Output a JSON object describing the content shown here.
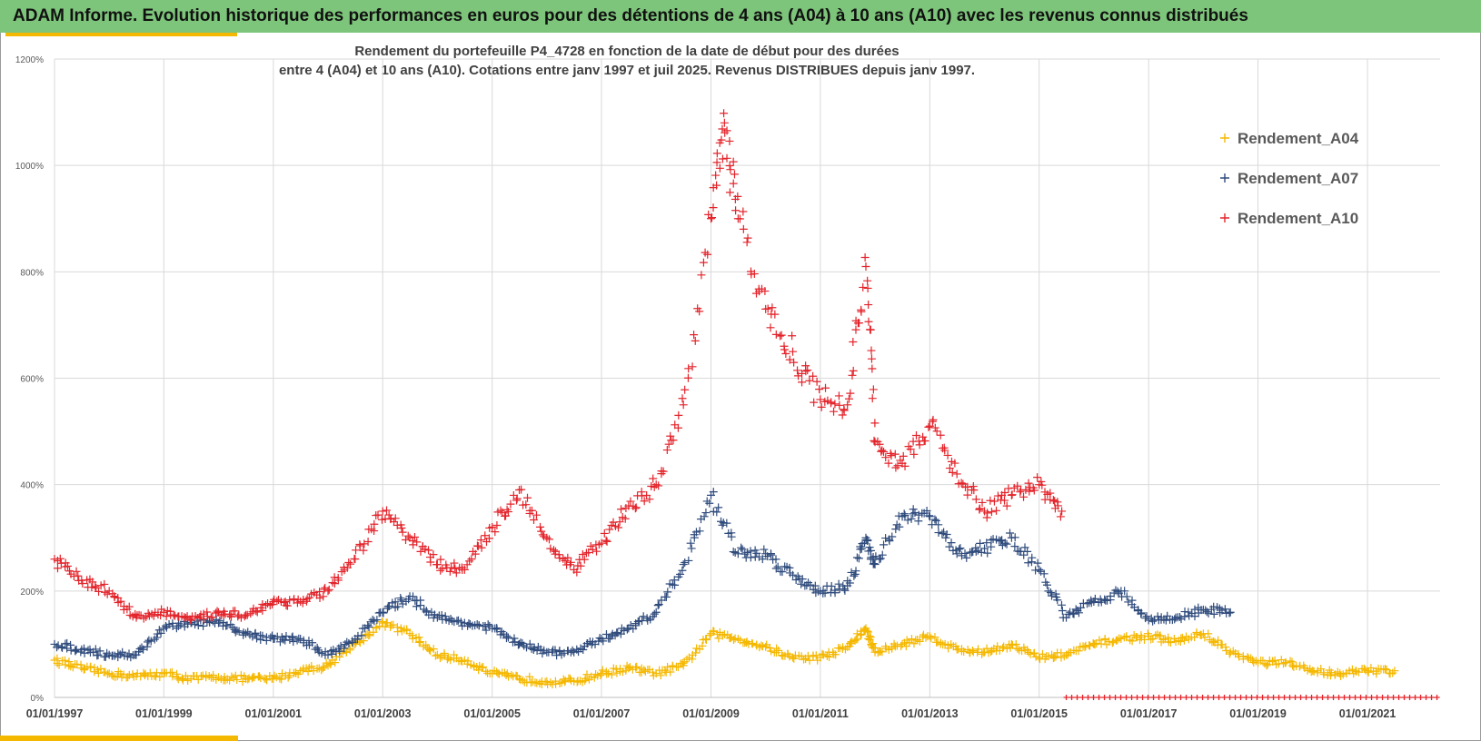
{
  "banner": {
    "title": "ADAM Informe. Evolution historique des performances en euros pour des détentions de 4 ans (A04) à 10 ans (A10) avec les revenus connus distribués",
    "background": "#7dc57a",
    "accent": "#f5b800"
  },
  "chart_data": {
    "type": "scatter",
    "title_line1": "Rendement du portefeuille P4_4728 en fonction de la date de début pour des durées",
    "title_line2": "entre 4 (A04) et 10 ans (A10). Cotations  entre janv 1997 et juil 2025. Revenus DISTRIBUES depuis janv 1997.",
    "xlabel": "",
    "ylabel": "",
    "xlim": [
      "1997-01-01",
      "2022-05-01"
    ],
    "ylim": [
      0,
      1200
    ],
    "y_ticks": [
      0,
      200,
      400,
      600,
      800,
      1000,
      1200
    ],
    "y_tick_labels": [
      "0%",
      "200%",
      "400%",
      "600%",
      "800%",
      "1000%",
      "1200%"
    ],
    "x_ticks": [
      "1997-01-01",
      "1999-01-01",
      "2001-01-01",
      "2003-01-01",
      "2005-01-01",
      "2007-01-01",
      "2009-01-01",
      "2011-01-01",
      "2013-01-01",
      "2015-01-01",
      "2017-01-01",
      "2019-01-01",
      "2021-01-01"
    ],
    "x_tick_labels": [
      "01/01/1997",
      "01/01/1999",
      "01/01/2001",
      "01/01/2003",
      "01/01/2005",
      "01/01/2007",
      "01/01/2009",
      "01/01/2011",
      "01/01/2013",
      "01/01/2015",
      "01/01/2017",
      "01/01/2019",
      "01/01/2021"
    ],
    "grid": true,
    "legend_position": "top-right",
    "marker": "+",
    "series": [
      {
        "name": "Rendement_A04",
        "color": "#f5b800",
        "x": [
          "1997-01-01",
          "1997-07-01",
          "1998-01-01",
          "1998-07-01",
          "1999-01-01",
          "1999-07-01",
          "2000-01-01",
          "2000-07-01",
          "2001-01-01",
          "2001-07-01",
          "2002-01-01",
          "2002-07-01",
          "2003-01-01",
          "2003-07-01",
          "2004-01-01",
          "2004-07-01",
          "2005-01-01",
          "2005-07-01",
          "2006-01-01",
          "2006-07-01",
          "2007-01-01",
          "2007-07-01",
          "2008-01-01",
          "2008-07-01",
          "2009-01-01",
          "2009-07-01",
          "2010-01-01",
          "2010-07-01",
          "2011-01-01",
          "2011-07-01",
          "2011-11-01",
          "2012-01-01",
          "2012-07-01",
          "2013-01-01",
          "2013-07-01",
          "2014-01-01",
          "2014-07-01",
          "2015-01-01",
          "2015-07-01",
          "2016-01-01",
          "2016-07-01",
          "2017-01-01",
          "2017-07-01",
          "2018-01-01",
          "2018-07-01",
          "2019-01-01",
          "2019-07-01",
          "2020-01-01",
          "2020-07-01",
          "2021-01-01",
          "2021-07-01"
        ],
        "y": [
          70,
          55,
          45,
          40,
          45,
          35,
          38,
          35,
          35,
          50,
          60,
          100,
          140,
          120,
          80,
          70,
          45,
          35,
          30,
          30,
          45,
          55,
          45,
          60,
          120,
          110,
          95,
          75,
          75,
          95,
          130,
          85,
          100,
          115,
          90,
          85,
          100,
          75,
          80,
          100,
          110,
          115,
          105,
          120,
          85,
          65,
          65,
          50,
          45,
          50,
          50
        ]
      },
      {
        "name": "Rendement_A07",
        "color": "#2f4b7c",
        "x": [
          "1997-01-01",
          "1997-07-01",
          "1998-01-01",
          "1998-07-01",
          "1999-01-01",
          "1999-07-01",
          "2000-01-01",
          "2000-07-01",
          "2001-01-01",
          "2001-07-01",
          "2002-01-01",
          "2002-07-01",
          "2003-01-01",
          "2003-07-01",
          "2004-01-01",
          "2004-07-01",
          "2005-01-01",
          "2005-07-01",
          "2006-01-01",
          "2006-07-01",
          "2007-01-01",
          "2007-07-01",
          "2008-01-01",
          "2008-07-01",
          "2009-01-01",
          "2009-07-01",
          "2010-01-01",
          "2010-07-01",
          "2011-01-01",
          "2011-07-01",
          "2011-11-01",
          "2012-01-01",
          "2012-07-01",
          "2013-01-01",
          "2013-07-01",
          "2014-01-01",
          "2014-07-01",
          "2015-01-01",
          "2015-07-01",
          "2016-01-01",
          "2016-07-01",
          "2017-01-01",
          "2017-07-01",
          "2018-01-01",
          "2018-07-01"
        ],
        "y": [
          100,
          90,
          80,
          80,
          130,
          140,
          140,
          120,
          110,
          110,
          80,
          110,
          160,
          190,
          150,
          140,
          130,
          100,
          85,
          85,
          110,
          130,
          160,
          250,
          380,
          270,
          270,
          230,
          200,
          210,
          300,
          250,
          340,
          340,
          270,
          280,
          300,
          240,
          150,
          180,
          200,
          145,
          150,
          165,
          160
        ]
      },
      {
        "name": "Rendement_A10",
        "color": "#e3242b",
        "x": [
          "1997-01-01",
          "1997-07-01",
          "1998-01-01",
          "1998-07-01",
          "1999-01-01",
          "1999-07-01",
          "2000-01-01",
          "2000-07-01",
          "2001-01-01",
          "2001-07-01",
          "2002-01-01",
          "2002-07-01",
          "2003-01-01",
          "2003-07-01",
          "2004-01-01",
          "2004-07-01",
          "2005-01-01",
          "2005-07-01",
          "2006-01-01",
          "2006-07-01",
          "2007-01-01",
          "2007-07-01",
          "2008-01-01",
          "2008-07-01",
          "2009-01-01",
          "2009-04-01",
          "2009-07-01",
          "2010-01-01",
          "2010-07-01",
          "2011-01-01",
          "2011-07-01",
          "2011-11-01",
          "2012-01-01",
          "2012-07-01",
          "2013-01-01",
          "2013-07-01",
          "2014-01-01",
          "2014-07-01",
          "2015-01-01",
          "2015-06-01"
        ],
        "y": [
          260,
          220,
          200,
          150,
          160,
          145,
          160,
          155,
          180,
          180,
          200,
          260,
          350,
          300,
          250,
          240,
          320,
          390,
          300,
          240,
          290,
          360,
          400,
          550,
          900,
          1080,
          900,
          730,
          650,
          560,
          550,
          810,
          480,
          440,
          510,
          420,
          350,
          380,
          400,
          350
        ]
      }
    ]
  }
}
